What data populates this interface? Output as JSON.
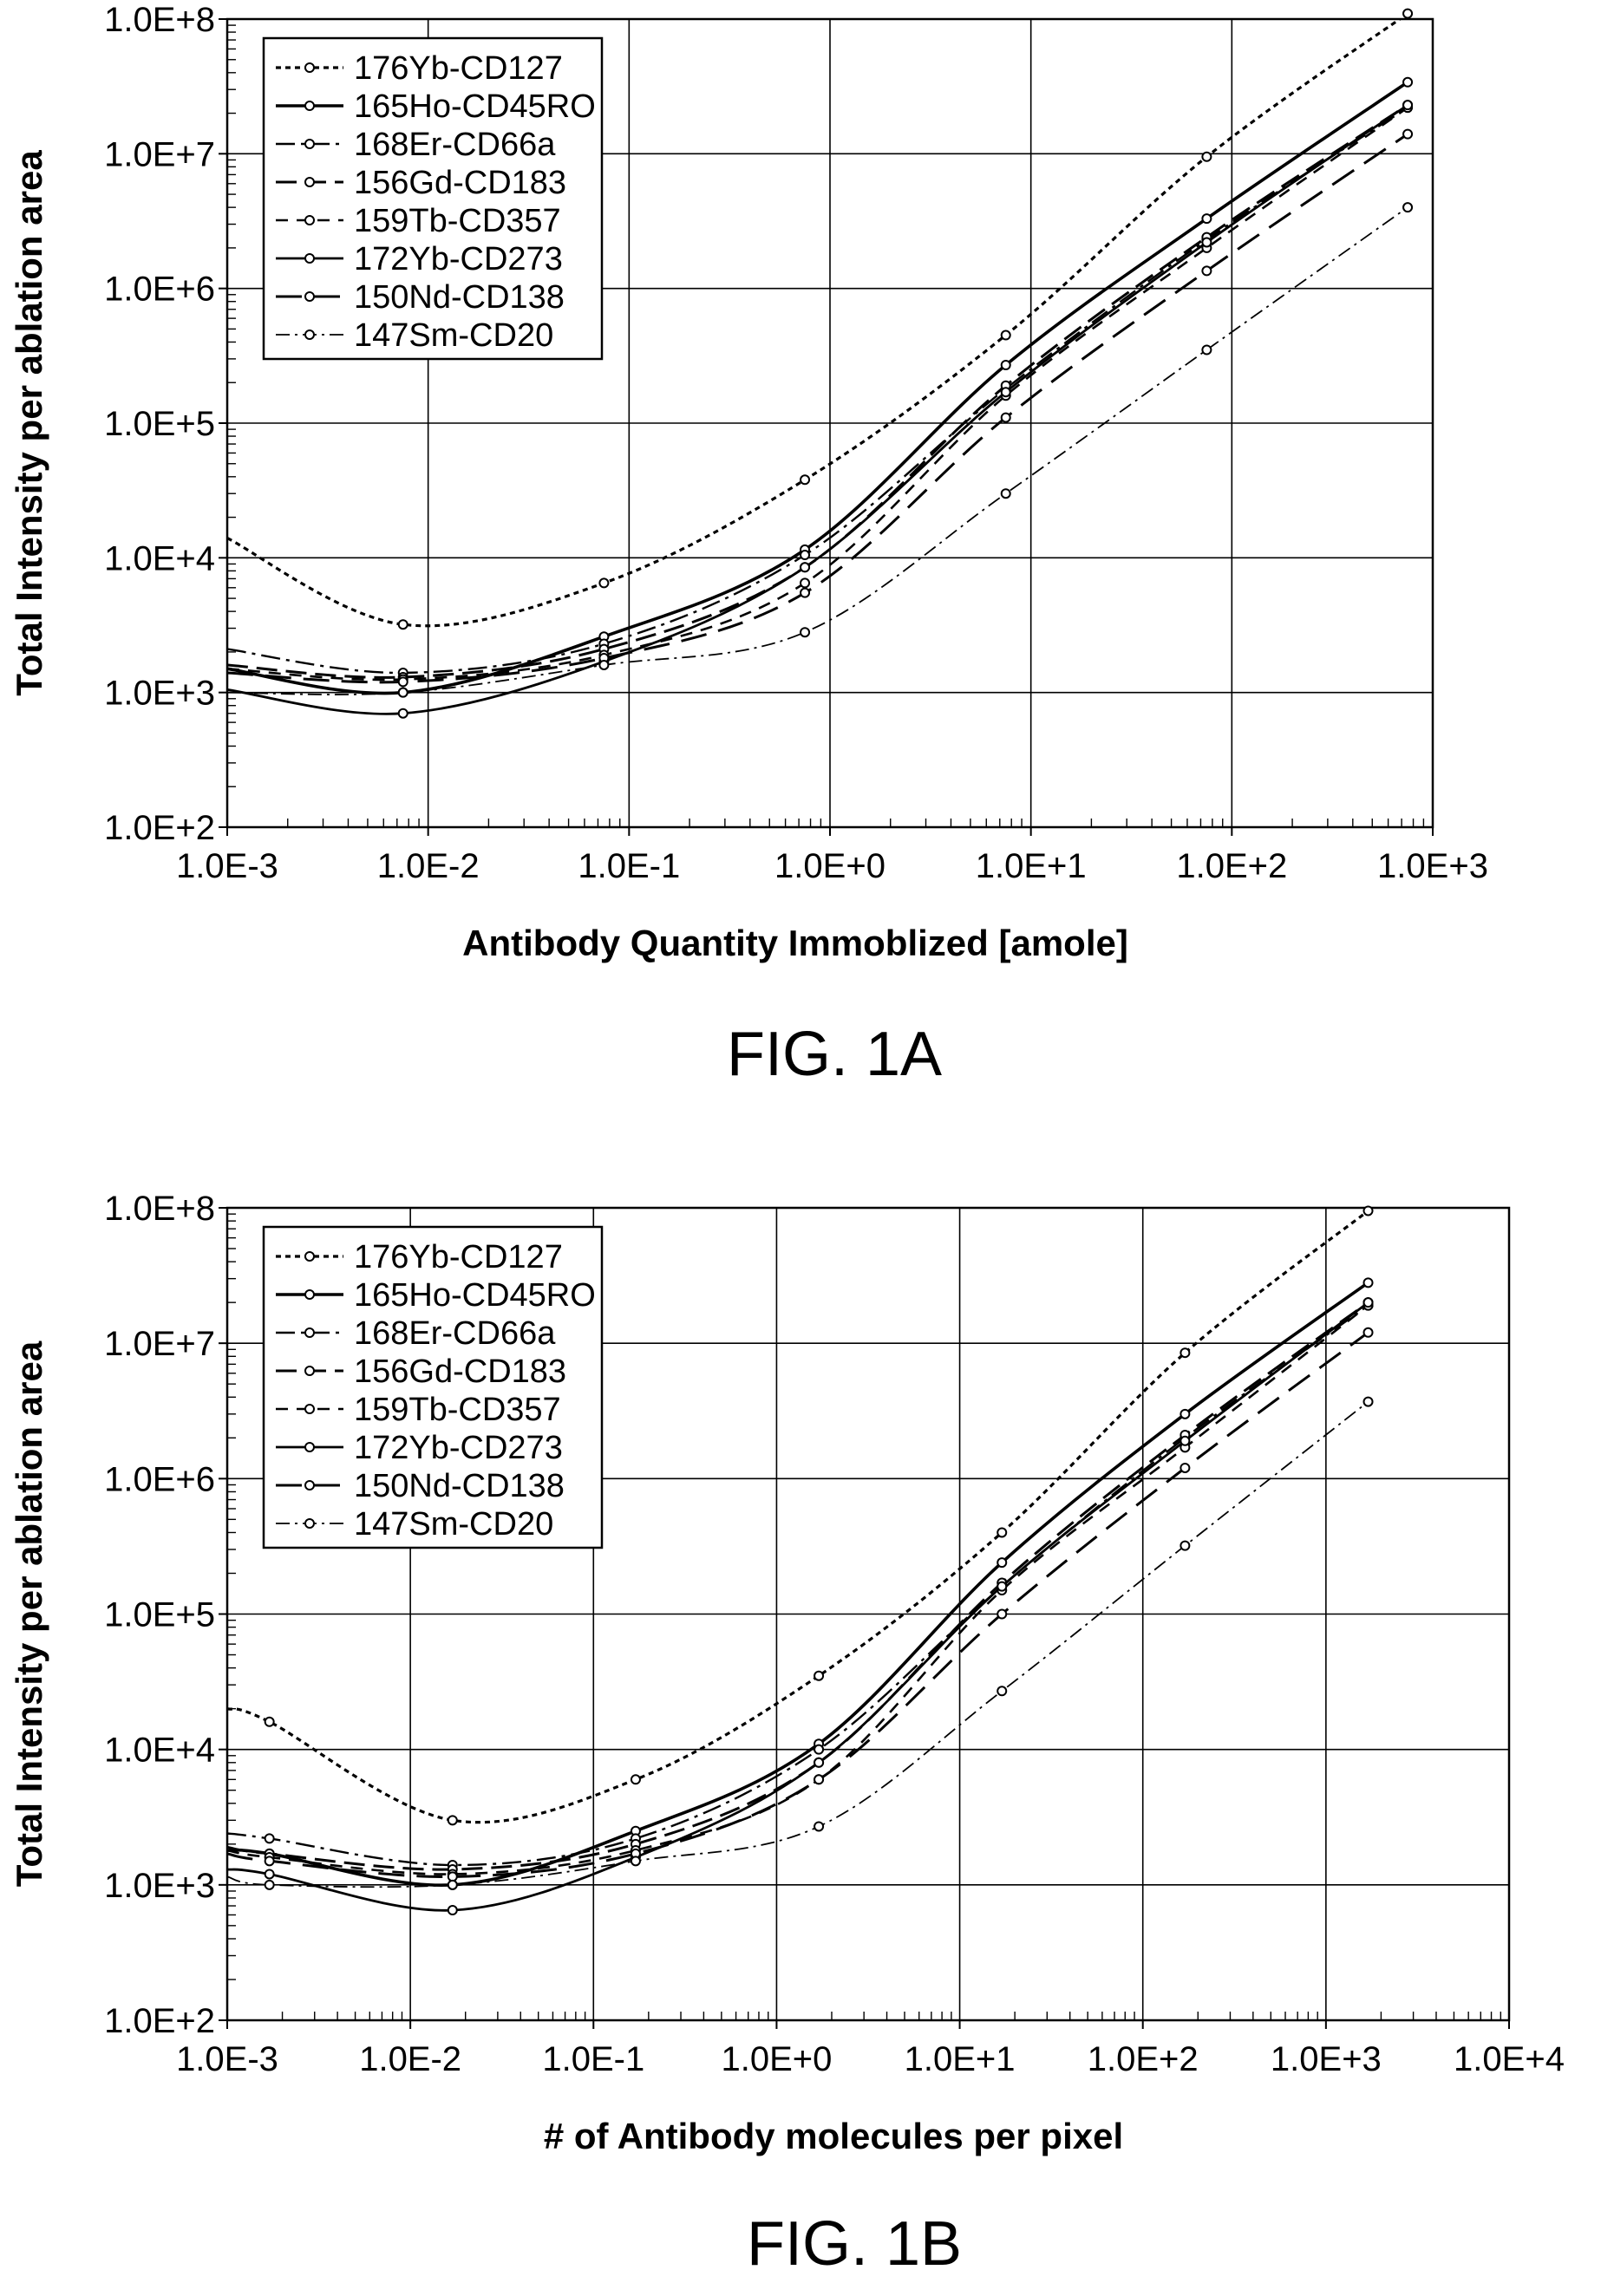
{
  "chart_data": [
    {
      "type": "line",
      "figure_label": "FIG. 1A",
      "xlabel": "Antibody Quantity Immoblized [amole]",
      "ylabel": "Total Intensity per ablation area",
      "x_scale": "log",
      "y_scale": "log",
      "xlim": [
        0.001,
        1000
      ],
      "ylim": [
        100,
        100000000
      ],
      "x_ticks": [
        "1.0E-3",
        "1.0E-2",
        "1.0E-1",
        "1.0E+0",
        "1.0E+1",
        "1.0E+2",
        "1.0E+3"
      ],
      "y_ticks": [
        "1.0E+2",
        "1.0E+3",
        "1.0E+4",
        "1.0E+5",
        "1.0E+6",
        "1.0E+7",
        "1.0E+8"
      ],
      "grid": true,
      "legend_position": "top-left",
      "x": [
        0.0075,
        0.075,
        0.75,
        7.5,
        75,
        750
      ],
      "series": [
        {
          "name": "176Yb-CD127",
          "start": 14000,
          "values": [
            3200,
            6500,
            38000,
            450000,
            9500000,
            110000000
          ]
        },
        {
          "name": "165Ho-CD45RO",
          "start": 1500,
          "values": [
            1000,
            2600,
            11500,
            270000,
            3300000,
            34000000
          ]
        },
        {
          "name": "168Er-CD66a",
          "start": 2100,
          "values": [
            1400,
            2300,
            10500,
            180000,
            2300000,
            22000000
          ]
        },
        {
          "name": "156Gd-CD183",
          "start": 1600,
          "values": [
            1300,
            2100,
            8500,
            190000,
            2400000,
            23000000
          ]
        },
        {
          "name": "159Tb-CD357",
          "start": 1500,
          "values": [
            1250,
            1900,
            6500,
            160000,
            2000000,
            22000000
          ]
        },
        {
          "name": "172Yb-CD273",
          "start": 1050,
          "values": [
            700,
            1700,
            8500,
            170000,
            2200000,
            23000000
          ]
        },
        {
          "name": "150Nd-CD138",
          "start": 1400,
          "values": [
            1200,
            1800,
            5500,
            110000,
            1350000,
            14000000
          ]
        },
        {
          "name": "147Sm-CD20",
          "start": 1000,
          "values": [
            1000,
            1600,
            2800,
            30000,
            350000,
            4000000
          ]
        }
      ]
    },
    {
      "type": "line",
      "figure_label": "FIG. 1B",
      "xlabel": "# of Antibody molecules per pixel",
      "ylabel": "Total Intensity per ablation area",
      "x_scale": "log",
      "y_scale": "log",
      "xlim": [
        0.001,
        10000
      ],
      "ylim": [
        100,
        100000000
      ],
      "x_ticks": [
        "1.0E-3",
        "1.0E-2",
        "1.0E-1",
        "1.0E+0",
        "1.0E+1",
        "1.0E+2",
        "1.0E+3",
        "1.0E+4"
      ],
      "y_ticks": [
        "1.0E+2",
        "1.0E+3",
        "1.0E+4",
        "1.0E+5",
        "1.0E+6",
        "1.0E+7",
        "1.0E+8"
      ],
      "grid": true,
      "legend_position": "top-left",
      "x": [
        0.0017,
        0.017,
        0.17,
        1.7,
        17,
        170,
        1700
      ],
      "series": [
        {
          "name": "176Yb-CD127",
          "start": 20000,
          "values": [
            16000,
            3000,
            6000,
            35000,
            400000,
            8500000,
            95000000
          ]
        },
        {
          "name": "165Ho-CD45RO",
          "start": 1800,
          "values": [
            1700,
            1000,
            2500,
            11000,
            240000,
            3000000,
            28000000
          ]
        },
        {
          "name": "168Er-CD66a",
          "start": 2400,
          "values": [
            2200,
            1400,
            2200,
            10000,
            160000,
            2000000,
            19000000
          ]
        },
        {
          "name": "156Gd-CD183",
          "start": 1900,
          "values": [
            1700,
            1300,
            2000,
            8000,
            170000,
            2100000,
            20000000
          ]
        },
        {
          "name": "159Tb-CD357",
          "start": 1800,
          "values": [
            1600,
            1200,
            1800,
            6000,
            150000,
            1700000,
            19000000
          ]
        },
        {
          "name": "172Yb-CD273",
          "start": 1300,
          "values": [
            1200,
            650,
            1600,
            8000,
            160000,
            1900000,
            20000000
          ]
        },
        {
          "name": "150Nd-CD138",
          "start": 1700,
          "values": [
            1500,
            1150,
            1700,
            6000,
            100000,
            1200000,
            12000000
          ]
        },
        {
          "name": "147Sm-CD20",
          "start": 1150,
          "values": [
            1000,
            1000,
            1500,
            2700,
            27000,
            320000,
            3700000
          ]
        }
      ]
    }
  ]
}
